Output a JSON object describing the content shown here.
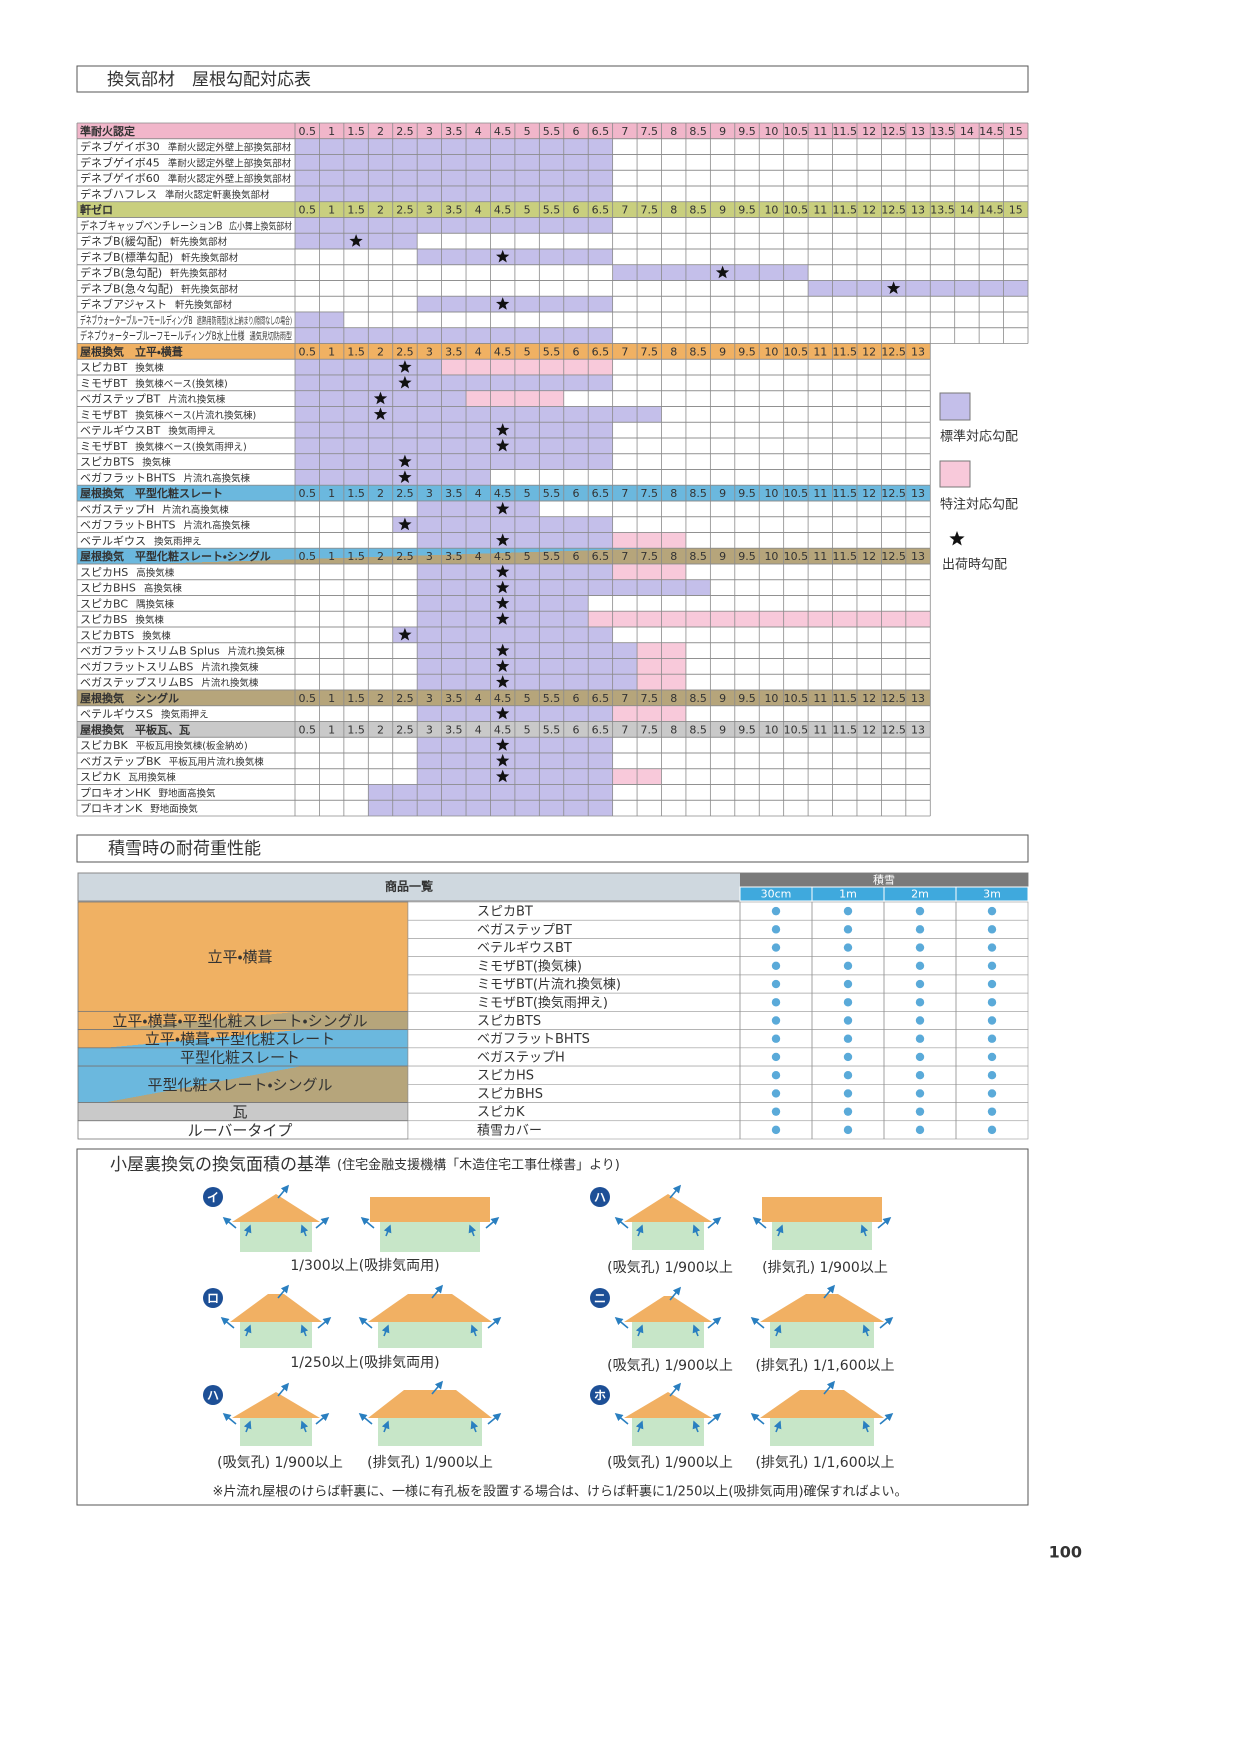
{
  "page_number": "100",
  "slope_table": {
    "title": "換気部材　屋根勾配対応表",
    "legend": [
      {
        "label": "標準対応勾配",
        "color": "#c4bfea"
      },
      {
        "label": "特注対応勾配",
        "color": "#f8c9da"
      },
      {
        "label": "出荷時勾配",
        "color": "#111111"
      }
    ],
    "groups": [
      {
        "label": "準耐火認定",
        "colors": [
          "#f1b6ca"
        ],
        "pitches": [
          0.5,
          1,
          1.5,
          2,
          2.5,
          3,
          3.5,
          4,
          4.5,
          5,
          5.5,
          6,
          6.5,
          7,
          7.5,
          8,
          8.5,
          9,
          9.5,
          10,
          10.5,
          11,
          11.5,
          12,
          12.5,
          13,
          13.5,
          14,
          14.5,
          15
        ],
        "rows": [
          {
            "name": "デネブゲイボ30",
            "note": "準耐火認定外壁上部換気部材",
            "standard": [
              0.5,
              6.5
            ]
          },
          {
            "name": "デネブゲイボ45",
            "note": "準耐火認定外壁上部換気部材",
            "standard": [
              0.5,
              6.5
            ]
          },
          {
            "name": "デネブゲイボ60",
            "note": "準耐火認定外壁上部換気部材",
            "standard": [
              0.5,
              6.5
            ]
          },
          {
            "name": "デネブハフレス",
            "note": "準耐火認定軒裏換気部材",
            "standard": [
              0.5,
              6.5
            ]
          }
        ]
      },
      {
        "label": "軒ゼロ",
        "colors": [
          "#c9cf7e"
        ],
        "pitches": [
          0.5,
          1,
          1.5,
          2,
          2.5,
          3,
          3.5,
          4,
          4.5,
          5,
          5.5,
          6,
          6.5,
          7,
          7.5,
          8,
          8.5,
          9,
          9.5,
          10,
          10.5,
          11,
          11.5,
          12,
          12.5,
          13,
          13.5,
          14,
          14.5,
          15
        ],
        "rows": [
          {
            "name": "デネブキャップベンチレーションB",
            "note": "広小舞上換気部材",
            "standard": [
              0.5,
              6.5
            ]
          },
          {
            "name": "デネブB(緩勾配)",
            "note": "軒先換気部材",
            "standard": [
              0.5,
              2.5
            ],
            "star": 1.5
          },
          {
            "name": "デネブB(標準勾配)",
            "note": "軒先換気部材",
            "standard": [
              3,
              6.5
            ],
            "star": 4.5
          },
          {
            "name": "デネブB(急勾配)",
            "note": "軒先換気部材",
            "standard": [
              7,
              10.5
            ],
            "star": 9
          },
          {
            "name": "デネブB(急々勾配)",
            "note": "軒先換気部材",
            "standard": [
              11,
              15
            ],
            "star": 12.5
          },
          {
            "name": "デネブアジャスト",
            "note": "軒先換気部材",
            "standard": [
              3,
              6.5
            ],
            "star": 4.5
          },
          {
            "name": "デネブウォーターブルーフモールディングB",
            "note": "遮熱用防雨型(水上納まり/隙間なしの場合)",
            "standard": [
              0.5,
              1
            ]
          },
          {
            "name": "デネブウォーターブルーフモールディングB水上仕様",
            "note": "通気見切防雨型",
            "standard": [
              0.5,
              6.5
            ]
          }
        ]
      },
      {
        "label": "屋根換気　立平・横葺",
        "colors": [
          "#f0b163"
        ],
        "pitches": [
          0.5,
          1,
          1.5,
          2,
          2.5,
          3,
          3.5,
          4,
          4.5,
          5,
          5.5,
          6,
          6.5,
          7,
          7.5,
          8,
          8.5,
          9,
          9.5,
          10,
          10.5,
          11,
          11.5,
          12,
          12.5,
          13
        ],
        "rows": [
          {
            "name": "スピカBT",
            "note": "換気棟",
            "standard": [
              0.5,
              3
            ],
            "special": [
              3.5,
              6.5
            ],
            "star": 2.5
          },
          {
            "name": "ミモザBT",
            "note": "換気棟ベース(換気棟)",
            "standard": [
              0.5,
              6.5
            ],
            "star": 2.5
          },
          {
            "name": "ベガステップBT",
            "note": "片流れ換気棟",
            "standard": [
              0.5,
              3.5
            ],
            "special": [
              4,
              5.5
            ],
            "star": 2
          },
          {
            "name": "ミモザBT",
            "note": "換気棟ベース(片流れ換気棟)",
            "standard": [
              0.5,
              7.5
            ],
            "star": 2
          },
          {
            "name": "ベテルギウスBT",
            "note": "換気雨押え",
            "standard": [
              0.5,
              6.5
            ],
            "star": 4.5
          },
          {
            "name": "ミモザBT",
            "note": "換気棟ベース(換気雨押え)",
            "standard": [
              0.5,
              6.5
            ],
            "star": 4.5
          },
          {
            "name": "スピカBTS",
            "note": "換気棟",
            "standard": [
              0.5,
              6.5
            ],
            "star": 2.5
          },
          {
            "name": "ベガフラットBHTS",
            "note": "片流れ高換気棟",
            "standard": [
              0.5,
              4
            ],
            "star": 2.5
          }
        ]
      },
      {
        "label": "屋根換気　平型化粧スレート",
        "colors": [
          "#6bb8de"
        ],
        "pitches": [
          0.5,
          1,
          1.5,
          2,
          2.5,
          3,
          3.5,
          4,
          4.5,
          5,
          5.5,
          6,
          6.5,
          7,
          7.5,
          8,
          8.5,
          9,
          9.5,
          10,
          10.5,
          11,
          11.5,
          12,
          12.5,
          13
        ],
        "rows": [
          {
            "name": "ベガステップH",
            "note": "片流れ高換気棟",
            "standard": [
              3,
              5
            ],
            "star": 4.5
          },
          {
            "name": "ベガフラットBHTS",
            "note": "片流れ高換気棟",
            "standard": [
              2.5,
              6.5
            ],
            "star": 2.5
          },
          {
            "name": "ベテルギウス",
            "note": "換気雨押え",
            "standard": [
              3,
              6.5
            ],
            "special": [
              7,
              8
            ],
            "star": 4.5
          }
        ]
      },
      {
        "label": "屋根換気　平型化粧スレート・シングル",
        "colors": [
          "#6bb8de",
          "#b6a57b"
        ],
        "pitches": [
          0.5,
          1,
          1.5,
          2,
          2.5,
          3,
          3.5,
          4,
          4.5,
          5,
          5.5,
          6,
          6.5,
          7,
          7.5,
          8,
          8.5,
          9,
          9.5,
          10,
          10.5,
          11,
          11.5,
          12,
          12.5,
          13
        ],
        "rows": [
          {
            "name": "スピカHS",
            "note": "高換気棟",
            "standard": [
              3,
              6.5
            ],
            "special": [
              7,
              8
            ],
            "star": 4.5
          },
          {
            "name": "スピカBHS",
            "note": "高換気棟",
            "standard": [
              3,
              8.5
            ],
            "star": 4.5
          },
          {
            "name": "スピカBC",
            "note": "隅換気棟",
            "standard": [
              3,
              6
            ],
            "star": 4.5
          },
          {
            "name": "スピカBS",
            "note": "換気棟",
            "standard": [
              3,
              6
            ],
            "special": [
              6.5,
              13
            ],
            "star": 4.5
          },
          {
            "name": "スピカBTS",
            "note": "換気棟",
            "standard": [
              2.5,
              6.5
            ],
            "star": 2.5
          },
          {
            "name": "ベガフラットスリムB Splus",
            "note": "片流れ換気棟",
            "standard": [
              3,
              7
            ],
            "special": [
              7.5,
              8
            ],
            "star": 4.5
          },
          {
            "name": "ベガフラットスリムBS",
            "note": "片流れ換気棟",
            "standard": [
              3,
              7
            ],
            "special": [
              7.5,
              8
            ],
            "star": 4.5
          },
          {
            "name": "ベガステップスリムBS",
            "note": "片流れ換気棟",
            "standard": [
              3,
              7
            ],
            "special": [
              7.5,
              8
            ],
            "star": 4.5
          }
        ]
      },
      {
        "label": "屋根換気　シングル",
        "colors": [
          "#b6a57b"
        ],
        "pitches": [
          0.5,
          1,
          1.5,
          2,
          2.5,
          3,
          3.5,
          4,
          4.5,
          5,
          5.5,
          6,
          6.5,
          7,
          7.5,
          8,
          8.5,
          9,
          9.5,
          10,
          10.5,
          11,
          11.5,
          12,
          12.5,
          13
        ],
        "rows": [
          {
            "name": "ベテルギウスS",
            "note": "換気雨押え",
            "standard": [
              3,
              6.5
            ],
            "special": [
              7,
              8
            ],
            "star": 4.5
          }
        ]
      },
      {
        "label": "屋根換気　平板瓦、瓦",
        "colors": [
          "#c9c9c9"
        ],
        "pitches": [
          0.5,
          1,
          1.5,
          2,
          2.5,
          3,
          3.5,
          4,
          4.5,
          5,
          5.5,
          6,
          6.5,
          7,
          7.5,
          8,
          8.5,
          9,
          9.5,
          10,
          10.5,
          11,
          11.5,
          12,
          12.5,
          13
        ],
        "rows": [
          {
            "name": "スピカBK",
            "note": "平板瓦用換気棟(板金納め)",
            "standard": [
              3,
              6.5
            ],
            "star": 4.5
          },
          {
            "name": "ベガステップBK",
            "note": "平板瓦用片流れ換気棟",
            "standard": [
              3,
              6.5
            ],
            "star": 4.5
          },
          {
            "name": "スピカK",
            "note": "瓦用換気棟",
            "standard": [
              3,
              6.5
            ],
            "special": [
              7,
              7.5
            ],
            "star": 4.5
          },
          {
            "name": "プロキオンHK",
            "note": "野地面高換気",
            "standard": [
              2,
              6.5
            ]
          },
          {
            "name": "プロキオンK",
            "note": "野地面換気",
            "standard": [
              2,
              6.5
            ]
          }
        ]
      }
    ]
  },
  "snow_table": {
    "title": "積雪時の耐荷重性能",
    "product_header": "商品一覧",
    "snow_header": "積雪",
    "depths": [
      "30cm",
      "1m",
      "2m",
      "3m"
    ],
    "dot_color": "#5aaad9",
    "categories": [
      {
        "label": "立平・横葺",
        "colors": [
          "#f0b163"
        ],
        "products": [
          {
            "name": "スピカBT",
            "ok": [
              true,
              true,
              true,
              true
            ]
          },
          {
            "name": "ベガステップBT",
            "ok": [
              true,
              true,
              true,
              true
            ]
          },
          {
            "name": "ベテルギウスBT",
            "ok": [
              true,
              true,
              true,
              true
            ]
          },
          {
            "name": "ミモザBT(換気棟)",
            "ok": [
              true,
              true,
              true,
              true
            ]
          },
          {
            "name": "ミモザBT(片流れ換気棟)",
            "ok": [
              true,
              true,
              true,
              true
            ]
          },
          {
            "name": "ミモザBT(換気雨押え)",
            "ok": [
              true,
              true,
              true,
              true
            ]
          }
        ]
      },
      {
        "label": "立平・横葺・平型化粧スレート・シングル",
        "colors": [
          "#f0b163",
          "#b6a57b"
        ],
        "products": [
          {
            "name": "スピカBTS",
            "ok": [
              true,
              true,
              true,
              true
            ]
          }
        ]
      },
      {
        "label": "立平・横葺・平型化粧スレート",
        "colors": [
          "#f0b163",
          "#6bb8de"
        ],
        "products": [
          {
            "name": "ベガフラットBHTS",
            "ok": [
              true,
              true,
              true,
              true
            ]
          }
        ]
      },
      {
        "label": "平型化粧スレート",
        "colors": [
          "#6bb8de"
        ],
        "products": [
          {
            "name": "ベガステップH",
            "ok": [
              true,
              true,
              true,
              true
            ]
          }
        ]
      },
      {
        "label": "平型化粧スレート・シングル",
        "colors": [
          "#6bb8de",
          "#b6a57b"
        ],
        "products": [
          {
            "name": "スピカHS",
            "ok": [
              true,
              true,
              true,
              true
            ]
          },
          {
            "name": "スピカBHS",
            "ok": [
              true,
              true,
              true,
              true
            ]
          }
        ]
      },
      {
        "label": "瓦",
        "colors": [
          "#c9c9c9"
        ],
        "products": [
          {
            "name": "スピカK",
            "ok": [
              true,
              true,
              true,
              true
            ]
          }
        ]
      },
      {
        "label": "ルーバータイプ",
        "colors": [
          "#ffffff"
        ],
        "products": [
          {
            "name": "積雪カバー",
            "ok": [
              true,
              true,
              true,
              true
            ]
          }
        ]
      }
    ]
  },
  "vent_section": {
    "title": "小屋裏換気の換気面積の基準",
    "source": "(住宅金融支援機構「木造住宅工事仕様書」より)",
    "panels": [
      {
        "badge": "イ",
        "captions": [
          "1/300以上(吸排気両用)"
        ]
      },
      {
        "badge": "ロ",
        "captions": [
          "1/250以上(吸排気両用)"
        ]
      },
      {
        "badge": "ハ",
        "captions": [
          "(吸気孔) 1/900以上",
          "(排気孔) 1/900以上"
        ]
      },
      {
        "badge": "ハ",
        "captions": [
          "(吸気孔) 1/900以上",
          "(排気孔) 1/900以上"
        ]
      },
      {
        "badge": "ニ",
        "captions": [
          "(吸気孔) 1/900以上",
          "(排気孔) 1/1,600以上"
        ]
      },
      {
        "badge": "ホ",
        "captions": [
          "(吸気孔) 1/900以上",
          "(排気孔) 1/1,600以上"
        ]
      }
    ],
    "note": "※片流れ屋根のけらば軒裏に、一様に有孔板を設置する場合は、けらば軒裏に1/250以上(吸排気両用)確保すればよい。"
  }
}
